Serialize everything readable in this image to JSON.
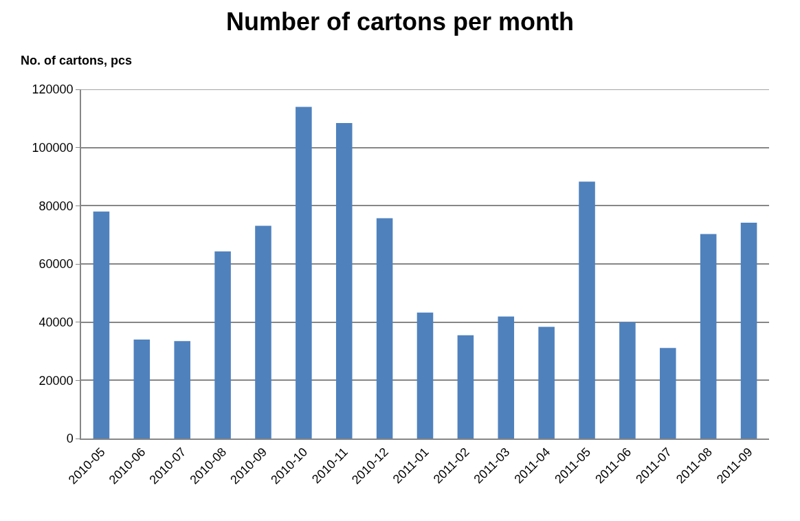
{
  "chart_data": {
    "type": "bar",
    "title": "Number of cartons per month",
    "ylabel": "No. of cartons, pcs",
    "categories": [
      "2010-05",
      "2010-06",
      "2010-07",
      "2010-08",
      "2010-09",
      "2010-10",
      "2010-11",
      "2010-12",
      "2011-01",
      "2011-02",
      "2011-03",
      "2011-04",
      "2011-05",
      "2011-06",
      "2011-07",
      "2011-08",
      "2011-09"
    ],
    "values": [
      78000,
      34000,
      33500,
      64300,
      73100,
      114000,
      108400,
      75700,
      43300,
      35500,
      41900,
      38400,
      88300,
      40000,
      31100,
      70300,
      74200
    ],
    "color": "#4f81bd",
    "ylim": [
      0,
      120000
    ],
    "yticks": [
      0,
      20000,
      40000,
      60000,
      80000,
      100000,
      120000
    ],
    "grid": "y"
  }
}
